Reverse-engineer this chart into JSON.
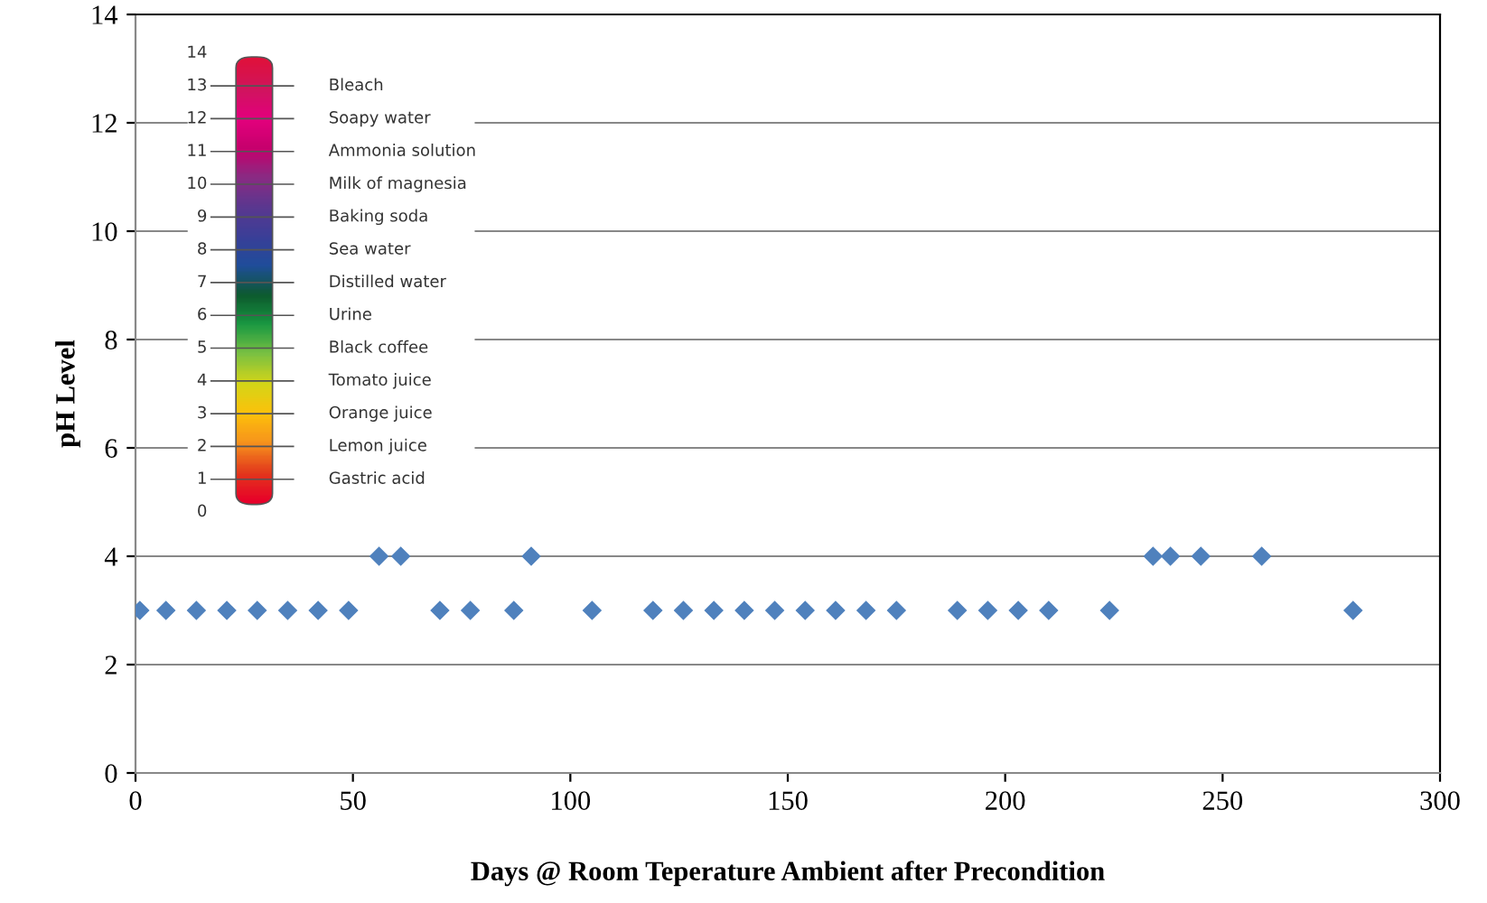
{
  "chart_data": {
    "type": "scatter",
    "xlabel": "Days @ Room Teperature Ambient after Precondition",
    "ylabel": "pH Level",
    "x": [
      1,
      7,
      14,
      21,
      28,
      35,
      42,
      49,
      56,
      61,
      70,
      77,
      87,
      91,
      105,
      119,
      126,
      133,
      140,
      147,
      154,
      161,
      168,
      175,
      189,
      196,
      203,
      210,
      224,
      234,
      238,
      245,
      259,
      280
    ],
    "values": [
      3,
      3,
      3,
      3,
      3,
      3,
      3,
      3,
      4,
      4,
      3,
      3,
      3,
      4,
      3,
      3,
      3,
      3,
      3,
      3,
      3,
      3,
      3,
      3,
      3,
      3,
      3,
      3,
      3,
      4,
      4,
      4,
      4,
      3
    ],
    "color": "#4f81bd",
    "marker": "diamond",
    "xlim": [
      0,
      300
    ],
    "ylim": [
      0,
      14
    ],
    "xticks": [
      0,
      50,
      100,
      150,
      200,
      250,
      300
    ],
    "yticks": [
      0,
      2,
      4,
      6,
      8,
      10,
      12,
      14
    ],
    "grid": "y",
    "annotations": [
      "14",
      "13",
      "12",
      "11",
      "10",
      "9",
      "8",
      "7",
      "6",
      "5",
      "4",
      "3",
      "2",
      "1",
      "0",
      "Bleach",
      "Soapy water",
      "Ammonia solution",
      "Milk of magnesia",
      "Baking soda",
      "Sea water",
      "Distilled water",
      "Urine",
      "Black coffee",
      "Tomato juice",
      "Orange juice",
      "Lemon juice",
      "Gastric acid"
    ]
  }
}
